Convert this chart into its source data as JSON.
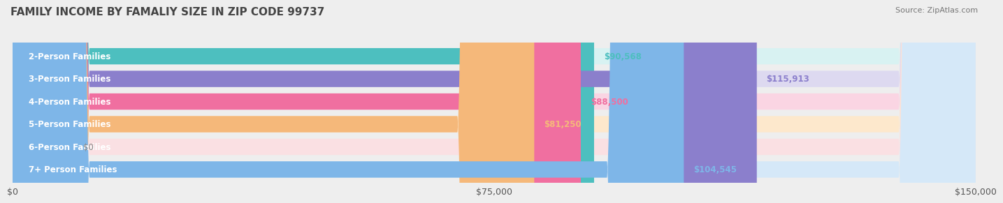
{
  "title": "FAMILY INCOME BY FAMALIY SIZE IN ZIP CODE 99737",
  "source": "Source: ZipAtlas.com",
  "categories": [
    "2-Person Families",
    "3-Person Families",
    "4-Person Families",
    "5-Person Families",
    "6-Person Families",
    "7+ Person Families"
  ],
  "values": [
    90568,
    115913,
    88500,
    81250,
    0,
    104545
  ],
  "bar_colors": [
    "#4DBFBF",
    "#8B7FCC",
    "#F06FA0",
    "#F5B87A",
    "#F0A0A8",
    "#7EB6E8"
  ],
  "bar_bg_colors": [
    "#D8F2F2",
    "#DDD9F0",
    "#FAD5E3",
    "#FDE8CC",
    "#FAE0E3",
    "#D5E8F8"
  ],
  "value_labels": [
    "$90,568",
    "$115,913",
    "$88,500",
    "$81,250",
    "$0",
    "$104,545"
  ],
  "xlim": [
    0,
    150000
  ],
  "xtick_vals": [
    0,
    75000,
    150000
  ],
  "xtick_labels": [
    "$0",
    "$75,000",
    "$150,000"
  ],
  "background_color": "#eeeeee",
  "title_fontsize": 11,
  "label_fontsize": 8.5,
  "value_fontsize": 8.5,
  "source_fontsize": 8
}
